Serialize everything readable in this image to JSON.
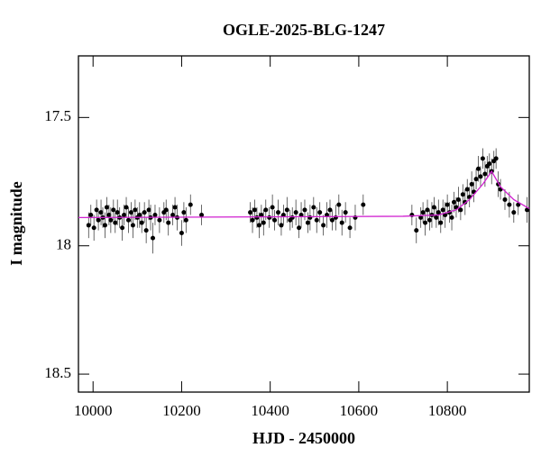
{
  "chart_data": {
    "type": "scatter",
    "title": "OGLE-2025-BLG-1247",
    "xlabel": "HJD - 2450000",
    "ylabel": "I magnitude",
    "xlim": [
      9967,
      10985
    ],
    "ylim": [
      17.26,
      18.57
    ],
    "y_inverted": true,
    "xticks": [
      10000,
      10200,
      10400,
      10600,
      10800
    ],
    "yticks": [
      17.5,
      18,
      18.5
    ],
    "series": [
      {
        "color": "#000000",
        "x": [
          9990,
          9995,
          10002,
          10008,
          10012,
          10018,
          10022,
          10027,
          10031,
          10036,
          10040,
          10046,
          10050,
          10055,
          10060,
          10066,
          10070,
          10075,
          10080,
          10086,
          10090,
          10095,
          10100,
          10105,
          10110,
          10116,
          10120,
          10126,
          10130,
          10135,
          10140,
          10150,
          10160,
          10165,
          10170,
          10180,
          10185,
          10190,
          10200,
          10205,
          10210,
          10220,
          10245,
          10355,
          10360,
          10365,
          10370,
          10375,
          10380,
          10385,
          10390,
          10398,
          10405,
          10410,
          10418,
          10425,
          10430,
          10438,
          10445,
          10450,
          10458,
          10465,
          10470,
          10478,
          10485,
          10490,
          10498,
          10505,
          10512,
          10520,
          10528,
          10535,
          10540,
          10548,
          10555,
          10562,
          10570,
          10580,
          10592,
          10610,
          10720,
          10730,
          10740,
          10745,
          10750,
          10755,
          10760,
          10765,
          10770,
          10775,
          10780,
          10785,
          10790,
          10795,
          10800,
          10805,
          10810,
          10815,
          10820,
          10825,
          10830,
          10835,
          10840,
          10845,
          10850,
          10855,
          10860,
          10865,
          10870,
          10875,
          10880,
          10885,
          10890,
          10895,
          10900,
          10905,
          10910,
          10915,
          10920,
          10930,
          10940,
          10950,
          10960,
          10980
        ],
        "values": [
          17.92,
          17.88,
          17.93,
          17.86,
          17.9,
          17.87,
          17.89,
          17.92,
          17.85,
          17.88,
          17.9,
          17.86,
          17.91,
          17.87,
          17.89,
          17.93,
          17.88,
          17.85,
          17.9,
          17.87,
          17.92,
          17.86,
          17.89,
          17.88,
          17.91,
          17.87,
          17.94,
          17.86,
          17.89,
          17.97,
          17.88,
          17.9,
          17.87,
          17.86,
          17.91,
          17.88,
          17.85,
          17.89,
          17.95,
          17.87,
          17.9,
          17.84,
          17.88,
          17.87,
          17.9,
          17.86,
          17.89,
          17.92,
          17.88,
          17.91,
          17.86,
          17.89,
          17.85,
          17.9,
          17.87,
          17.92,
          17.88,
          17.86,
          17.9,
          17.89,
          17.87,
          17.93,
          17.88,
          17.86,
          17.91,
          17.89,
          17.85,
          17.9,
          17.87,
          17.92,
          17.88,
          17.86,
          17.9,
          17.89,
          17.84,
          17.91,
          17.87,
          17.93,
          17.89,
          17.84,
          17.88,
          17.94,
          17.89,
          17.87,
          17.91,
          17.86,
          17.9,
          17.88,
          17.85,
          17.89,
          17.87,
          17.91,
          17.86,
          17.88,
          17.84,
          17.87,
          17.89,
          17.83,
          17.85,
          17.82,
          17.86,
          17.8,
          17.83,
          17.78,
          17.81,
          17.76,
          17.79,
          17.74,
          17.7,
          17.73,
          17.66,
          17.72,
          17.69,
          17.68,
          17.71,
          17.67,
          17.66,
          17.76,
          17.78,
          17.82,
          17.84,
          17.87,
          17.84,
          17.86
        ],
        "errors": [
          0.05,
          0.04,
          0.05,
          0.04,
          0.04,
          0.05,
          0.04,
          0.05,
          0.04,
          0.04,
          0.05,
          0.04,
          0.04,
          0.05,
          0.04,
          0.05,
          0.04,
          0.04,
          0.05,
          0.04,
          0.05,
          0.04,
          0.04,
          0.05,
          0.04,
          0.04,
          0.05,
          0.04,
          0.05,
          0.06,
          0.04,
          0.05,
          0.04,
          0.04,
          0.05,
          0.04,
          0.04,
          0.05,
          0.05,
          0.04,
          0.05,
          0.04,
          0.04,
          0.04,
          0.05,
          0.04,
          0.04,
          0.05,
          0.04,
          0.05,
          0.04,
          0.04,
          0.05,
          0.04,
          0.05,
          0.04,
          0.04,
          0.05,
          0.04,
          0.04,
          0.05,
          0.04,
          0.05,
          0.04,
          0.04,
          0.05,
          0.04,
          0.05,
          0.04,
          0.04,
          0.05,
          0.04,
          0.04,
          0.05,
          0.04,
          0.05,
          0.04,
          0.04,
          0.05,
          0.04,
          0.04,
          0.05,
          0.04,
          0.04,
          0.05,
          0.04,
          0.04,
          0.05,
          0.04,
          0.04,
          0.05,
          0.04,
          0.04,
          0.05,
          0.04,
          0.04,
          0.05,
          0.04,
          0.04,
          0.05,
          0.04,
          0.04,
          0.05,
          0.04,
          0.04,
          0.05,
          0.04,
          0.04,
          0.05,
          0.04,
          0.04,
          0.05,
          0.04,
          0.04,
          0.05,
          0.04,
          0.04,
          0.05,
          0.04,
          0.04,
          0.05,
          0.04,
          0.04,
          0.05
        ]
      },
      {
        "type": "line",
        "color": "#d020d0",
        "x": [
          9967,
          10700,
          10780,
          10820,
          10850,
          10880,
          10900,
          10920,
          10950,
          10985
        ],
        "values": [
          17.89,
          17.885,
          17.88,
          17.86,
          17.82,
          17.76,
          17.71,
          17.77,
          17.82,
          17.855
        ]
      }
    ]
  }
}
